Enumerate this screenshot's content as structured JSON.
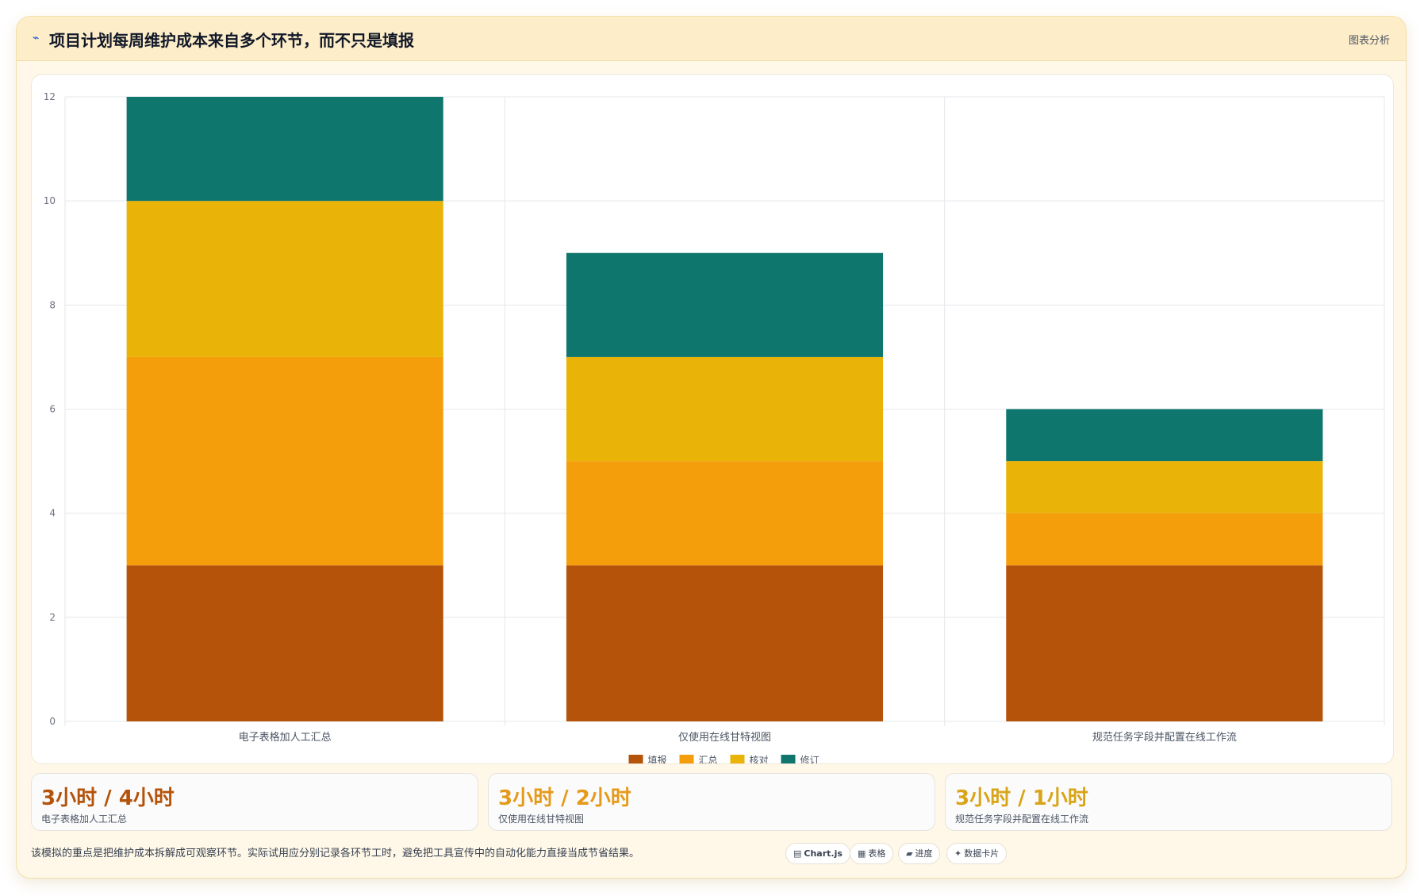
{
  "header": {
    "icon": "chart-line-icon",
    "title": "项目计划每周维护成本来自多个环节，而不只是填报",
    "action_label": "图表分析"
  },
  "chart_data": {
    "type": "bar",
    "stacked": true,
    "categories": [
      "电子表格加人工汇总",
      "仅使用在线甘特视图",
      "规范任务字段并配置在线工作流"
    ],
    "series": [
      {
        "name": "填报",
        "values": [
          3,
          3,
          3
        ],
        "color": "#b45309"
      },
      {
        "name": "汇总",
        "values": [
          4,
          2,
          1
        ],
        "color": "#f59e0b"
      },
      {
        "name": "核对",
        "values": [
          3,
          2,
          1
        ],
        "color": "#eab308"
      },
      {
        "name": "修订",
        "values": [
          2,
          2,
          1
        ],
        "color": "#0f766e"
      }
    ],
    "ylim": [
      0,
      12
    ],
    "yticks": [
      0,
      2,
      4,
      6,
      8,
      10,
      12
    ],
    "grid": true,
    "legend_position": "bottom"
  },
  "stats": [
    {
      "value": "3小时 / 4小时",
      "label": "电子表格加人工汇总",
      "color": "#b45309"
    },
    {
      "value": "3小时 / 2小时",
      "label": "仅使用在线甘特视图",
      "color": "#e59a1a"
    },
    {
      "value": "3小时 / 1小时",
      "label": "规范任务字段并配置在线工作流",
      "color": "#d9a418"
    }
  ],
  "footnote": "该模拟的重点是把维护成本拆解成可观察环节。实际试用应分别记录各环节工时，避免把工具宣传中的自动化能力直接当成节省结果。",
  "chips": [
    {
      "icon": "chart-icon",
      "glyph": "▤",
      "label": "Chart.js"
    },
    {
      "icon": "table-icon",
      "glyph": "▦",
      "label": "表格"
    },
    {
      "icon": "progress-icon",
      "glyph": "▰",
      "label": "进度"
    },
    {
      "icon": "sparkle-icon",
      "glyph": "✦",
      "label": "数据卡片"
    }
  ]
}
